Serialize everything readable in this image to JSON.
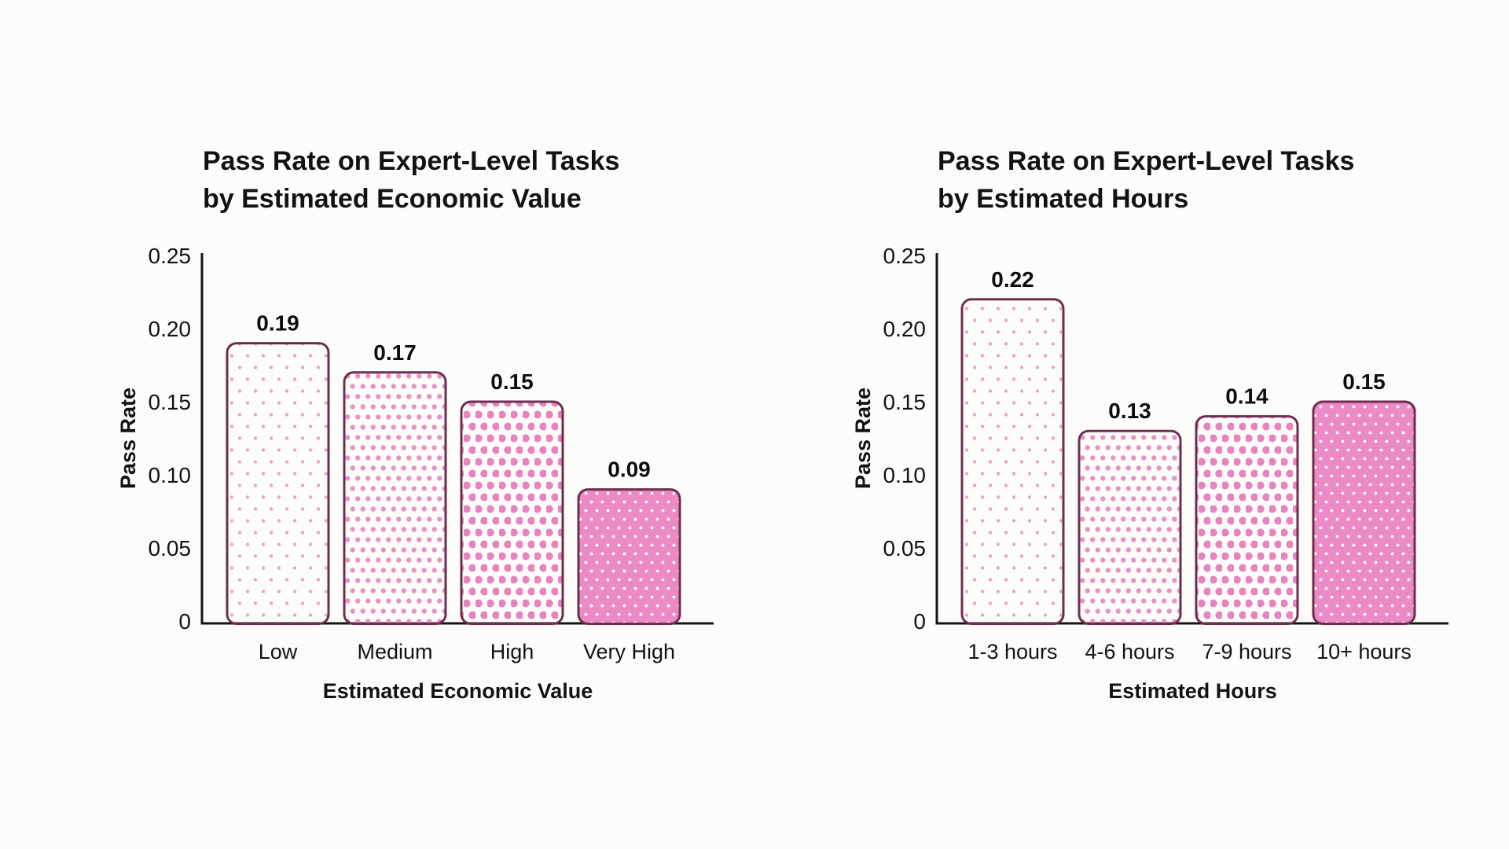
{
  "page": {
    "background_color": "#fcfdfa",
    "text_color": "#121212"
  },
  "style": {
    "bar_stroke": "#6e2d50",
    "dot_pinks": [
      "#e8a6c6",
      "#ea92c4",
      "#e883bd",
      "#ec8ac6"
    ],
    "inverse_dot_color": "#ffffff",
    "axis_color": "#141414",
    "value_label_color": "#0d0d0d"
  },
  "chart_data": [
    {
      "type": "bar",
      "title": "Pass Rate on Expert-Level Tasks by Estimated Economic Value",
      "title_lines": [
        "Pass Rate on Expert-Level Tasks",
        "by Estimated Economic Value"
      ],
      "categories": [
        "Low",
        "Medium",
        "High",
        "Very High"
      ],
      "values": [
        0.19,
        0.17,
        0.15,
        0.09
      ],
      "value_labels": [
        "0.19",
        "0.17",
        "0.15",
        "0.09"
      ],
      "xlabel": "Estimated Economic Value",
      "ylabel": "Pass Rate",
      "ylim": [
        0,
        0.25
      ],
      "ytick_values": [
        0.25,
        0.2,
        0.15,
        0.1,
        0.05,
        0
      ],
      "ytick_labels": [
        "0.25",
        "0.20",
        "0.15",
        "0.10",
        "0.05",
        "0"
      ],
      "grid": false,
      "legend": "none"
    },
    {
      "type": "bar",
      "title": "Pass Rate on Expert-Level Tasks by Estimated Hours",
      "title_lines": [
        "Pass Rate on Expert-Level Tasks",
        "by Estimated Hours"
      ],
      "categories": [
        "1-3 hours",
        "4-6 hours",
        "7-9 hours",
        "10+ hours"
      ],
      "values": [
        0.22,
        0.13,
        0.14,
        0.15
      ],
      "value_labels": [
        "0.22",
        "0.13",
        "0.14",
        "0.15"
      ],
      "xlabel": "Estimated Hours",
      "ylabel": "Pass Rate",
      "ylim": [
        0,
        0.25
      ],
      "ytick_values": [
        0.25,
        0.2,
        0.15,
        0.1,
        0.05,
        0
      ],
      "ytick_labels": [
        "0.25",
        "0.20",
        "0.15",
        "0.10",
        "0.05",
        "0"
      ],
      "grid": false,
      "legend": "none"
    }
  ]
}
